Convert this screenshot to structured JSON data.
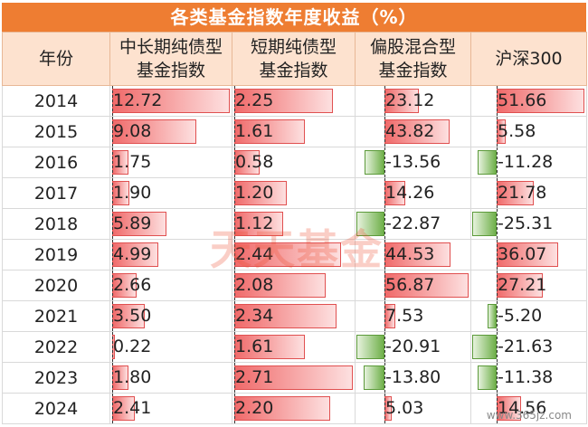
{
  "title": "各类基金指数年度收益（%）",
  "headers": [
    "年份",
    "中长期纯债型基金指数",
    "短期纯债型基金指数",
    "偏股混合型基金指数",
    "沪深300"
  ],
  "header_lines": [
    [
      "年份"
    ],
    [
      "中长期纯债型",
      "基金指数"
    ],
    [
      "短期纯债型",
      "基金指数"
    ],
    [
      "偏股混合型",
      "基金指数"
    ],
    [
      "沪深300"
    ]
  ],
  "rows": [
    {
      "year": "2014",
      "v": [
        "12.72",
        "2.25",
        "23.12",
        "51.66"
      ]
    },
    {
      "year": "2015",
      "v": [
        "9.08",
        "1.61",
        "43.82",
        "5.58"
      ]
    },
    {
      "year": "2016",
      "v": [
        "1.75",
        "0.58",
        "-13.56",
        "-11.28"
      ]
    },
    {
      "year": "2017",
      "v": [
        "1.90",
        "1.20",
        "14.26",
        "21.78"
      ]
    },
    {
      "year": "2018",
      "v": [
        "5.89",
        "1.12",
        "-22.87",
        "-25.31"
      ]
    },
    {
      "year": "2019",
      "v": [
        "4.99",
        "2.44",
        "44.53",
        "36.07"
      ]
    },
    {
      "year": "2020",
      "v": [
        "2.66",
        "2.08",
        "56.87",
        "27.21"
      ]
    },
    {
      "year": "2021",
      "v": [
        "3.50",
        "2.34",
        "7.53",
        "-5.20"
      ]
    },
    {
      "year": "2022",
      "v": [
        "0.22",
        "1.61",
        "-20.91",
        "-21.63"
      ]
    },
    {
      "year": "2023",
      "v": [
        "1.80",
        "2.71",
        "-13.80",
        "-11.38"
      ]
    },
    {
      "year": "2024",
      "v": [
        "2.41",
        "2.20",
        "5.03",
        "14.56"
      ]
    }
  ],
  "watermark": "天天基金",
  "site": "www.365jz.com",
  "colors": {
    "title_bg": "#ee7d32",
    "header_bg": "#fde2cf",
    "positive_bar": "#f06a6a",
    "negative_bar": "#6fb04a"
  }
}
